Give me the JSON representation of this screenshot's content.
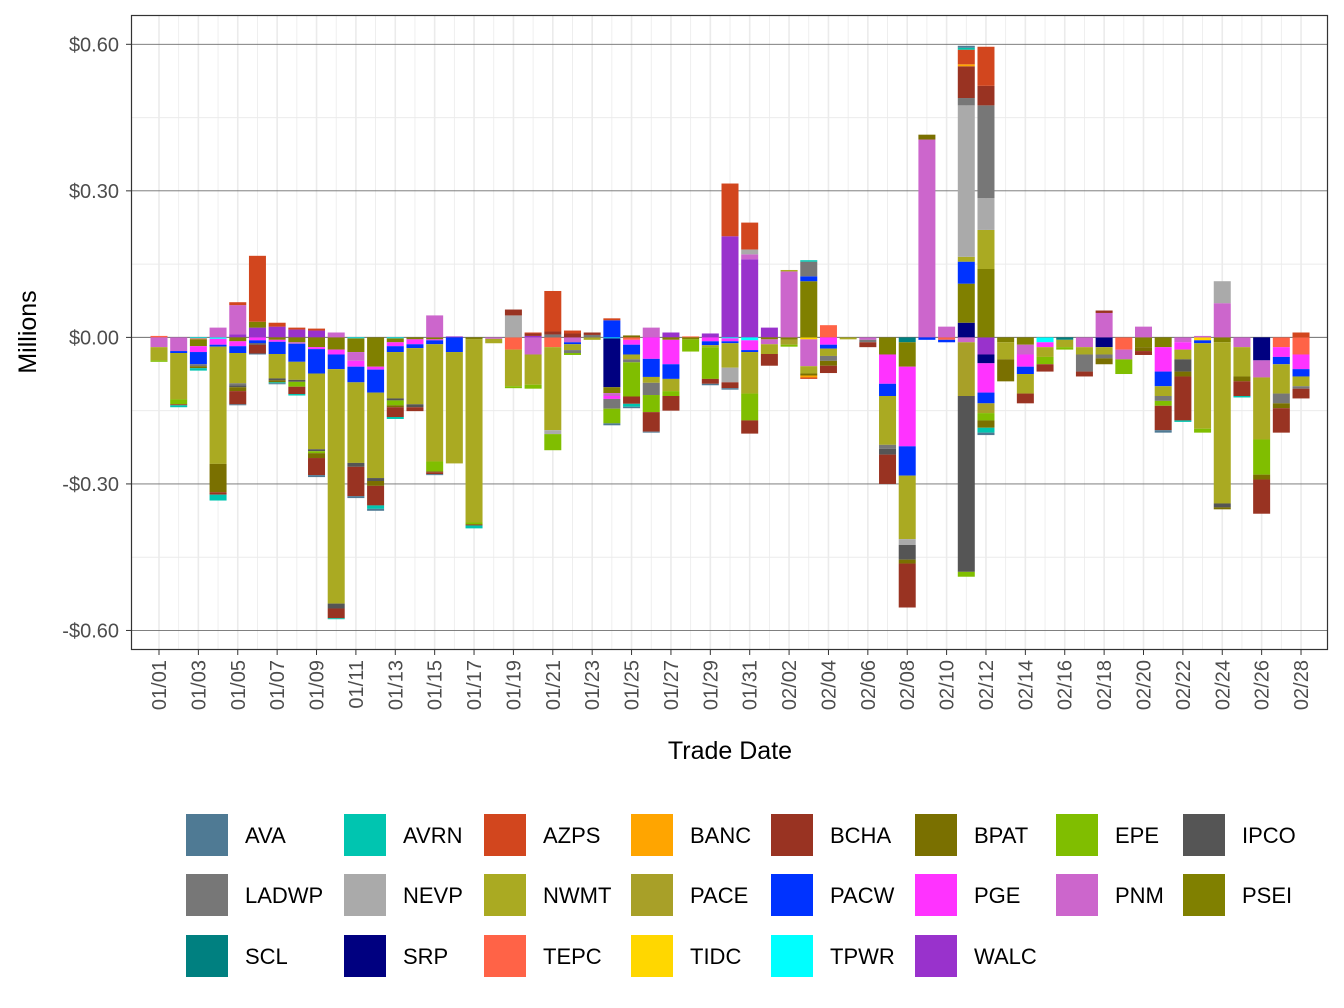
{
  "chart_data": {
    "type": "bar",
    "stacked": true,
    "xlabel": "Trade Date",
    "ylabel": "Millions",
    "ylim": [
      -0.64,
      0.66
    ],
    "yticks": [
      0.6,
      0.3,
      0.0,
      -0.3,
      -0.6
    ],
    "ytick_labels": [
      "$0.60",
      "$0.30",
      "$0.00",
      "-$0.30",
      "-$0.60"
    ],
    "grid": true,
    "legend_position": "bottom",
    "series_order": [
      "AVA",
      "AVRN",
      "AZPS",
      "BANC",
      "BCHA",
      "BPAT",
      "EPE",
      "IPCO",
      "LADWP",
      "NEVP",
      "NWMT",
      "PACE",
      "PACW",
      "PGE",
      "PNM",
      "PSEI",
      "SCL",
      "SRP",
      "TEPC",
      "TIDC",
      "TPWR",
      "WALC"
    ],
    "colors": {
      "AVA": "#4F7A94",
      "AVRN": "#00C5B0",
      "AZPS": "#D2461E",
      "BANC": "#FFA500",
      "BCHA": "#993322",
      "BPAT": "#7A7000",
      "EPE": "#80BE00",
      "IPCO": "#555555",
      "LADWP": "#777777",
      "NEVP": "#AAAAAA",
      "NWMT": "#AAAA22",
      "PACE": "#A8A028",
      "PACW": "#0033FF",
      "PGE": "#FF33FF",
      "PNM": "#CC66CC",
      "PSEI": "#808000",
      "SCL": "#008080",
      "SRP": "#000080",
      "TEPC": "#FF6347",
      "TIDC": "#FFD700",
      "TPWR": "#00FFFF",
      "WALC": "#9932CC"
    },
    "x_tick_labels": [
      "01/01",
      "01/03",
      "01/05",
      "01/07",
      "01/09",
      "01/11",
      "01/13",
      "01/15",
      "01/17",
      "01/19",
      "01/21",
      "01/23",
      "01/25",
      "01/27",
      "01/29",
      "01/31",
      "02/02",
      "02/04",
      "02/06",
      "02/08",
      "02/10",
      "02/12",
      "02/14",
      "02/16",
      "02/18",
      "02/20",
      "02/22",
      "02/24",
      "02/26",
      "02/28"
    ],
    "days": [
      {
        "date": "01/01",
        "values": {
          "TEPC": 0.003,
          "PNM": -0.02,
          "NWMT": -0.027,
          "EPE": -0.003
        }
      },
      {
        "date": "01/02",
        "values": {
          "PNM": -0.028,
          "PACW": -0.004,
          "NWMT": -0.095,
          "EPE": -0.01,
          "BCHA": -0.002,
          "AVRN": -0.004
        }
      },
      {
        "date": "01/03",
        "values": {
          "TPWR": -0.002,
          "TEPC": -0.002,
          "PSEI": -0.014,
          "PGE": -0.012,
          "PACW": -0.025,
          "LADWP": -0.004,
          "BPAT": -0.004,
          "AVRN": -0.005
        }
      },
      {
        "date": "01/04",
        "values": {
          "PNM": 0.02,
          "TPWR": -0.003,
          "PGE": -0.012,
          "PACW": -0.004,
          "NWMT": -0.24,
          "BPAT": -0.058,
          "BCHA": -0.005,
          "AVRN": -0.012
        }
      },
      {
        "date": "01/05",
        "values": {
          "WALC": 0.006,
          "PNM": 0.06,
          "BPAT": -0.008,
          "AZPS": 0.006,
          "PSEI": -0.008,
          "PGE": -0.01,
          "PACW": -0.014,
          "NWMT": -0.062,
          "LADWP": -0.004,
          "IPCO": -0.004,
          "BCHA": -0.027,
          "AVA": -0.002
        }
      },
      {
        "date": "01/06",
        "values": {
          "WALC": 0.02,
          "PSEI": 0.012,
          "AZPS": 0.135,
          "PGE": -0.006,
          "PACW": -0.006,
          "BCHA": -0.018,
          "IPCO": -0.003,
          "AVA": -0.002
        }
      },
      {
        "date": "01/07",
        "values": {
          "WALC": 0.022,
          "AZPS": 0.008,
          "PSEI": -0.005,
          "PGE": -0.004,
          "PACW": -0.025,
          "NWMT": -0.05,
          "IPCO": -0.004,
          "BPAT": -0.004,
          "AVRN": -0.002,
          "AVA": -0.002
        }
      },
      {
        "date": "01/08",
        "values": {
          "WALC": 0.016,
          "AZPS": 0.004,
          "PSEI": -0.01,
          "PNM": -0.003,
          "PACW": -0.037,
          "NWMT": -0.037,
          "IPCO": -0.004,
          "EPE": -0.01,
          "BCHA": -0.015,
          "AVRN": -0.003
        }
      },
      {
        "date": "01/09",
        "values": {
          "WALC": 0.014,
          "AZPS": 0.004,
          "PSEI": -0.02,
          "PGE": -0.004,
          "PACW": -0.05,
          "NWMT": -0.155,
          "IPCO": -0.004,
          "EPE": -0.004,
          "BPAT": -0.01,
          "BCHA": -0.035,
          "AVA": -0.004
        }
      },
      {
        "date": "01/10",
        "values": {
          "PNM": 0.01,
          "PSEI": -0.025,
          "PGE": -0.01,
          "PACW": -0.03,
          "NWMT": -0.48,
          "IPCO": -0.01,
          "BCHA": -0.02,
          "AVRN": -0.002
        }
      },
      {
        "date": "01/11",
        "values": {
          "TPWR": -0.002,
          "PSEI": -0.028,
          "PNM": -0.018,
          "PGE": -0.012,
          "PACW": -0.032,
          "NWMT": -0.165,
          "IPCO": -0.008,
          "BCHA": -0.06,
          "AVA": -0.004
        }
      },
      {
        "date": "01/12",
        "values": {
          "PSEI": -0.06,
          "PGE": -0.006,
          "PACW": -0.047,
          "NWMT": -0.175,
          "IPCO": -0.006,
          "BPAT": -0.01,
          "BCHA": -0.04,
          "AVRN": -0.007,
          "AVA": -0.004
        }
      },
      {
        "date": "01/13",
        "values": {
          "TPWR": -0.002,
          "PSEI": -0.008,
          "PGE": -0.008,
          "PACW": -0.012,
          "NWMT": -0.095,
          "IPCO": -0.004,
          "EPE": -0.01,
          "BPAT": -0.004,
          "BCHA": -0.02,
          "AVRN": -0.004
        }
      },
      {
        "date": "01/14",
        "values": {
          "PSEI": -0.004,
          "PGE": -0.01,
          "PACW": -0.008,
          "NWMT": -0.115,
          "IPCO": -0.006,
          "BCHA": -0.008
        }
      },
      {
        "date": "01/15",
        "values": {
          "PNM": 0.045,
          "PSEI": -0.004,
          "PGE": -0.002,
          "PACW": -0.008,
          "NWMT": -0.24,
          "BPAT": -0.002,
          "EPE": -0.02,
          "BCHA": -0.004,
          "AVA": -0.002
        }
      },
      {
        "date": "01/16",
        "values": {
          "WALC": 0.002,
          "PACW": -0.03,
          "NWMT": -0.228
        }
      },
      {
        "date": "01/17",
        "values": {
          "PSEI": -0.004,
          "NWMT": -0.375,
          "EPE": -0.004,
          "BCHA": -0.002,
          "AVRN": -0.006
        }
      },
      {
        "date": "01/18",
        "values": {
          "PNM": -0.003,
          "NWMT": -0.009
        }
      },
      {
        "date": "01/19",
        "values": {
          "NEVP": 0.045,
          "BCHA": 0.012,
          "TEPC": -0.025,
          "NWMT": -0.075,
          "EPE": -0.004
        }
      },
      {
        "date": "01/20",
        "values": {
          "WALC": 0.003,
          "BCHA": 0.005,
          "AZPS": 0.002,
          "PNM": -0.035,
          "NWMT": -0.062,
          "EPE": -0.008
        }
      },
      {
        "date": "01/21",
        "values": {
          "LADWP": 0.006,
          "BCHA": 0.006,
          "AZPS": 0.083,
          "TEPC": -0.02,
          "NWMT": -0.17,
          "NEVP": -0.008,
          "EPE": -0.033
        }
      },
      {
        "date": "01/22",
        "values": {
          "BCHA": 0.008,
          "AZPS": 0.006,
          "PNM": -0.01,
          "PACW": -0.004,
          "LADWP": -0.006,
          "NWMT": -0.012,
          "EPE": -0.004
        }
      },
      {
        "date": "01/23",
        "values": {
          "LADWP": 0.005,
          "BCHA": 0.005,
          "NWMT": -0.005
        }
      },
      {
        "date": "01/24",
        "values": {
          "PACW": 0.035,
          "AZPS": 0.004,
          "TPWR": -0.002,
          "SRP": -0.1,
          "PSEI": -0.012,
          "PGE": -0.006,
          "PNM": -0.006,
          "LADWP": -0.02,
          "EPE": -0.03,
          "AVA": -0.004
        }
      },
      {
        "date": "01/25",
        "values": {
          "BPAT": 0.004,
          "TEPC": -0.005,
          "PGE": -0.01,
          "PACW": -0.02,
          "NWMT": -0.01,
          "LADWP": -0.006,
          "EPE": -0.07,
          "BCHA": -0.015,
          "AVRN": -0.006,
          "AVA": -0.003
        }
      },
      {
        "date": "01/26",
        "values": {
          "PNM": 0.02,
          "PGE": -0.044,
          "PACW": -0.037,
          "NWMT": -0.012,
          "LADWP": -0.025,
          "EPE": -0.035,
          "BCHA": -0.04,
          "AVA": -0.002
        }
      },
      {
        "date": "01/27",
        "values": {
          "WALC": 0.01,
          "PSEI": -0.005,
          "PGE": -0.05,
          "PACW": -0.03,
          "NWMT": -0.025,
          "EPE": -0.01,
          "BCHA": -0.03
        }
      },
      {
        "date": "01/28",
        "values": {
          "TEPC": 0.002,
          "PSEI": -0.004,
          "EPE": -0.025
        }
      },
      {
        "date": "01/29",
        "values": {
          "WALC": 0.008,
          "PGE": -0.008,
          "PACW": -0.008,
          "NWMT": -0.004,
          "EPE": -0.065,
          "BCHA": -0.01,
          "AVA": -0.003
        }
      },
      {
        "date": "01/30",
        "values": {
          "WALC": 0.207,
          "AZPS": 0.108,
          "TPWR": -0.002,
          "PGE": -0.006,
          "PACW": -0.004,
          "NEVP": -0.03,
          "NWMT": -0.05,
          "BCHA": -0.012,
          "AVA": -0.003
        }
      },
      {
        "date": "01/31",
        "values": {
          "WALC": 0.16,
          "PNM": 0.01,
          "NEVP": 0.01,
          "AZPS": 0.055,
          "PGE": -0.02,
          "TPWR": -0.006,
          "PACW": -0.004,
          "NWMT": -0.085,
          "EPE": -0.055,
          "BCHA": -0.027
        }
      },
      {
        "date": "02/01",
        "values": {
          "WALC": 0.02,
          "PNM": -0.01,
          "PSEI": -0.004,
          "NWMT": -0.02,
          "BCHA": -0.024
        }
      },
      {
        "date": "02/02",
        "values": {
          "PNM": 0.135,
          "NWMT": 0.003,
          "PACE": -0.01,
          "PSEI": -0.005,
          "EPE": -0.004
        }
      },
      {
        "date": "02/03",
        "values": {
          "PACW": 0.01,
          "LADWP": 0.03,
          "PSEI": 0.115,
          "AVRN": 0.003,
          "PNM": -0.055,
          "NWMT": -0.015,
          "BPAT": -0.004,
          "BANC": -0.004,
          "TIDC": -0.004,
          "AZPS": -0.003
        }
      },
      {
        "date": "02/04",
        "values": {
          "TEPC": 0.025,
          "PGE": -0.015,
          "PACW": -0.008,
          "NWMT": -0.015,
          "LADWP": -0.01,
          "BPAT": -0.01,
          "BCHA": -0.015
        }
      },
      {
        "date": "02/05",
        "values": {
          "NWMT": -0.004
        }
      },
      {
        "date": "02/06",
        "values": {
          "PNM": -0.005,
          "LADWP": -0.005,
          "BCHA": -0.01
        }
      },
      {
        "date": "02/07",
        "values": {
          "PSEI": -0.035,
          "PGE": -0.06,
          "PACW": -0.025,
          "NWMT": -0.1,
          "IPCO": -0.012,
          "LADWP": -0.008,
          "BCHA": -0.06
        }
      },
      {
        "date": "02/08",
        "values": {
          "SCL": -0.01,
          "PSEI": -0.05,
          "PGE": -0.163,
          "PACW": -0.06,
          "NWMT": -0.13,
          "NEVP": -0.012,
          "IPCO": -0.03,
          "BPAT": -0.008,
          "BCHA": -0.09
        }
      },
      {
        "date": "02/09",
        "values": {
          "PNM": 0.405,
          "BPAT": 0.01,
          "PACW": -0.005
        }
      },
      {
        "date": "02/10",
        "values": {
          "PNM": 0.022,
          "PACW": -0.005,
          "TEPC": -0.005
        }
      },
      {
        "date": "02/11",
        "values": {
          "SRP": 0.03,
          "PSEI": 0.08,
          "NWMT": 0.01,
          "PACW": 0.045,
          "NEVP": 0.31,
          "LADWP": 0.015,
          "BCHA": 0.065,
          "AZPS": 0.03,
          "BANC": 0.004,
          "AVRN": 0.004,
          "AVA": 0.004,
          "PNM": -0.01,
          "PACE": -0.11,
          "IPCO": -0.36,
          "EPE": -0.01
        }
      },
      {
        "date": "02/12",
        "values": {
          "PSEI": 0.14,
          "NWMT": 0.08,
          "NEVP": 0.065,
          "LADWP": 0.19,
          "BCHA": 0.04,
          "AZPS": 0.08,
          "WALC": -0.035,
          "SRP": -0.018,
          "PGE": -0.06,
          "PACW": -0.022,
          "PACE": -0.02,
          "EPE": -0.015,
          "BPAT": -0.015,
          "AVRN": -0.01,
          "AVA": -0.005
        }
      },
      {
        "date": "02/13",
        "values": {
          "PSEI": -0.01,
          "NWMT": -0.035,
          "BPAT": -0.045
        }
      },
      {
        "date": "02/14",
        "values": {
          "PNM": -0.02,
          "PGE": -0.025,
          "PACW": -0.015,
          "NWMT": -0.04,
          "PSEI": -0.015,
          "BCHA": -0.02
        }
      },
      {
        "date": "02/15",
        "values": {
          "TPWR": -0.01,
          "PGE": -0.01,
          "NWMT": -0.02,
          "EPE": -0.015,
          "BCHA": -0.015
        }
      },
      {
        "date": "02/16",
        "values": {
          "NWMT": -0.015,
          "EPE": -0.005,
          "SCL": -0.005
        }
      },
      {
        "date": "02/17",
        "values": {
          "PNM": -0.02,
          "NWMT": -0.015,
          "LADWP": -0.035,
          "BCHA": -0.01
        }
      },
      {
        "date": "02/18",
        "values": {
          "PNM": 0.05,
          "BCHA": 0.005,
          "SRP": -0.02,
          "NWMT": -0.015,
          "LADWP": -0.008,
          "BPAT": -0.012
        }
      },
      {
        "date": "02/19",
        "values": {
          "PNM": -0.02,
          "TEPC": -0.025,
          "EPE": -0.03
        }
      },
      {
        "date": "02/20",
        "values": {
          "PNM": 0.022,
          "PSEI": -0.02,
          "BPAT": -0.008,
          "BCHA": -0.008
        }
      },
      {
        "date": "02/21",
        "values": {
          "PSEI": -0.02,
          "PGE": -0.05,
          "PACW": -0.03,
          "NWMT": -0.02,
          "LADWP": -0.01,
          "EPE": -0.01,
          "BCHA": -0.05,
          "AVA": -0.005
        }
      },
      {
        "date": "02/22",
        "values": {
          "PNM": -0.01,
          "PGE": -0.015,
          "NWMT": -0.02,
          "IPCO": -0.025,
          "BPAT": -0.01,
          "BCHA": -0.09,
          "AVRN": -0.003
        }
      },
      {
        "date": "02/23",
        "values": {
          "PNM": 0.003,
          "TIDC": -0.006,
          "PACW": -0.006,
          "NWMT": -0.175,
          "EPE": -0.008
        }
      },
      {
        "date": "02/24",
        "values": {
          "PNM": 0.07,
          "NEVP": 0.045,
          "PSEI": -0.01,
          "NWMT": -0.33,
          "IPCO": -0.008,
          "BPAT": -0.004
        }
      },
      {
        "date": "02/25",
        "values": {
          "PNM": -0.02,
          "NWMT": -0.06,
          "BPAT": -0.01,
          "BCHA": -0.03,
          "AVRN": -0.003
        }
      },
      {
        "date": "02/26",
        "values": {
          "SRP": -0.047,
          "PNM": -0.035,
          "NWMT": -0.127,
          "EPE": -0.072,
          "BPAT": -0.01,
          "BCHA": -0.07
        }
      },
      {
        "date": "02/27",
        "values": {
          "TEPC": -0.02,
          "PGE": -0.02,
          "PACW": -0.015,
          "NWMT": -0.06,
          "LADWP": -0.02,
          "BPAT": -0.01,
          "BCHA": -0.05
        }
      },
      {
        "date": "02/28",
        "values": {
          "AZPS": 0.01,
          "TEPC": -0.035,
          "PGE": -0.03,
          "PACW": -0.015,
          "NWMT": -0.02,
          "LADWP": -0.005,
          "BCHA": -0.02
        }
      }
    ]
  }
}
